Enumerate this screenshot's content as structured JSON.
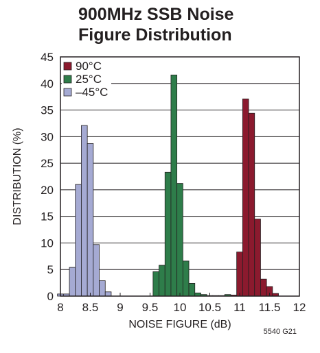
{
  "title_lines": [
    "900MHz SSB Noise",
    "Figure Distribution"
  ],
  "footnote": "5540 G21",
  "chart_data": {
    "type": "bar",
    "xlabel": "NOISE FIGURE (dB)",
    "ylabel": "DISTRIBUTION (%)",
    "xlim": [
      8,
      12
    ],
    "ylim": [
      0,
      45
    ],
    "xticks": [
      "8",
      "8.5",
      "9",
      "9.5",
      "10",
      "10.5",
      "11",
      "11.5",
      "12"
    ],
    "yticks": [
      "0",
      "5",
      "10",
      "15",
      "20",
      "25",
      "30",
      "35",
      "40",
      "45"
    ],
    "bin_width": 0.1,
    "grid": true,
    "legend_position": "top-left",
    "series": [
      {
        "name": "90°C",
        "color": "#8b1a2e",
        "x": [
          10.9,
          11.0,
          11.1,
          11.2,
          11.3,
          11.4,
          11.5,
          11.6
        ],
        "values": [
          0.2,
          8.3,
          37.1,
          34.4,
          14.5,
          3.2,
          1.8,
          0.5
        ]
      },
      {
        "name": "25°C",
        "color": "#2e7d4a",
        "x": [
          9.6,
          9.7,
          9.8,
          9.9,
          10.0,
          10.1,
          10.2,
          10.3,
          10.4,
          10.5,
          10.6,
          10.7,
          10.8
        ],
        "values": [
          4.6,
          5.8,
          23.3,
          41.6,
          21.2,
          6.6,
          2.4,
          0.6,
          0.3,
          0.1,
          0.1,
          0.1,
          0.3
        ]
      },
      {
        "name": "–45°C",
        "color": "#a5aad3",
        "x": [
          8.0,
          8.1,
          8.2,
          8.3,
          8.4,
          8.5,
          8.6,
          8.7,
          8.8
        ],
        "values": [
          0.4,
          0.4,
          5.4,
          21.0,
          32.1,
          28.7,
          9.7,
          2.9,
          0.8
        ]
      }
    ]
  }
}
